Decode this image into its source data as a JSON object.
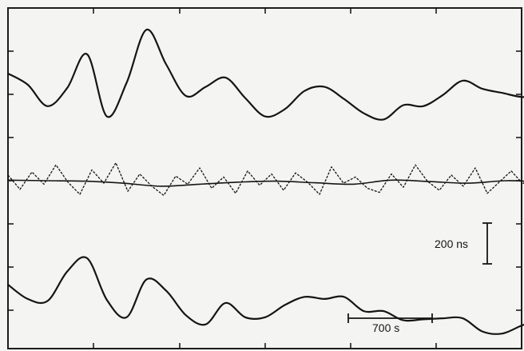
{
  "chart_data": {
    "type": "line",
    "title": "",
    "xlabel": "",
    "ylabel": "",
    "grid": false,
    "units": {
      "time": "s",
      "delay": "ns"
    },
    "scale_bars": {
      "time": {
        "value": 700,
        "unit": "s",
        "label": "700 s"
      },
      "delay": {
        "value": 200,
        "unit": "ns",
        "label": "200 ns"
      }
    },
    "series": [
      {
        "key": "top",
        "style": "solid",
        "x": [
          0,
          165,
          330,
          495,
          660,
          825,
          990,
          1155,
          1320,
          1485,
          1650,
          1815,
          1980,
          2145,
          2310,
          2475,
          2640,
          2805,
          2970,
          3135,
          3300,
          3465,
          3630,
          3795,
          3960,
          4125,
          4290,
          4455,
          4620,
          4785,
          4950,
          5115,
          5280,
          5445,
          5610,
          5775,
          5940,
          6105,
          6270,
          6435
        ],
        "y": [
          0,
          -55,
          -160,
          -70,
          95,
          -210,
          -45,
          215,
          45,
          -110,
          -65,
          -20,
          -120,
          -210,
          -175,
          -85,
          -65,
          -125,
          -195,
          -225,
          -155,
          -160,
          -105,
          -35,
          -75,
          -95,
          -115,
          -110,
          -140,
          -130,
          -115,
          105,
          -40,
          -100,
          -70,
          -45,
          -75,
          -235,
          -130,
          -20
        ]
      },
      {
        "key": "middle-dashed",
        "style": "dashed",
        "x": [
          0,
          100,
          200,
          300,
          400,
          500,
          600,
          700,
          800,
          900,
          1000,
          1100,
          1200,
          1300,
          1400,
          1500,
          1600,
          1700,
          1800,
          1900,
          2000,
          2100,
          2200,
          2300,
          2400,
          2500,
          2600,
          2700,
          2800,
          2900,
          3000,
          3100,
          3200,
          3300,
          3400,
          3500,
          3600,
          3700,
          3800,
          3900,
          4000,
          4100,
          4200,
          4300,
          4400,
          4500,
          4600,
          4700,
          4800,
          4900,
          5000,
          5100,
          5200,
          5300,
          5400,
          5500,
          5600,
          5700,
          5800,
          5900,
          6000,
          6100,
          6200,
          6300,
          6400
        ],
        "y": [
          20,
          -50,
          35,
          -25,
          70,
          -15,
          -75,
          45,
          -20,
          80,
          -60,
          25,
          -35,
          -80,
          15,
          -25,
          55,
          -45,
          10,
          -70,
          40,
          -30,
          25,
          -55,
          30,
          -15,
          -75,
          60,
          -20,
          10,
          -45,
          -65,
          25,
          -40,
          70,
          -10,
          -55,
          20,
          -35,
          55,
          -70,
          -15,
          40,
          -25,
          85,
          -60,
          5,
          -30,
          65,
          -15,
          -45,
          20,
          -75,
          10,
          35,
          -20,
          60,
          -45,
          -10,
          40,
          -65,
          20,
          -30,
          15,
          -5
        ]
      },
      {
        "key": "middle-smooth",
        "style": "solid",
        "x": [
          0,
          320,
          640,
          960,
          1280,
          1600,
          1920,
          2240,
          2560,
          2880,
          3200,
          3520,
          3840,
          4160,
          4480,
          4800,
          5120,
          5440,
          5760,
          6080,
          6400
        ],
        "y": [
          -5,
          -8,
          -10,
          -20,
          -35,
          -25,
          -15,
          -10,
          -18,
          -25,
          -5,
          -12,
          -20,
          -8,
          -15,
          -22,
          -10,
          -5,
          -12,
          -8,
          -15
        ]
      },
      {
        "key": "bottom",
        "style": "solid",
        "x": [
          0,
          165,
          330,
          495,
          660,
          825,
          990,
          1155,
          1320,
          1485,
          1650,
          1815,
          1980,
          2145,
          2310,
          2475,
          2640,
          2805,
          2970,
          3135,
          3300,
          3465,
          3630,
          3795,
          3960,
          4125,
          4290,
          4455,
          4620,
          4785,
          4950,
          5115,
          5280,
          5445,
          5610,
          5775,
          5940,
          6105,
          6270,
          6435
        ],
        "y": [
          0,
          -70,
          -80,
          65,
          130,
          -75,
          -160,
          25,
          -30,
          -150,
          -195,
          -90,
          -160,
          -160,
          -100,
          -60,
          -70,
          -60,
          -130,
          -130,
          -175,
          -170,
          -165,
          -165,
          -230,
          -240,
          -200,
          -170,
          -190,
          -215,
          -225,
          -200,
          -180,
          -200,
          -200,
          -200,
          -200,
          -210,
          -200,
          -200
        ]
      }
    ]
  }
}
